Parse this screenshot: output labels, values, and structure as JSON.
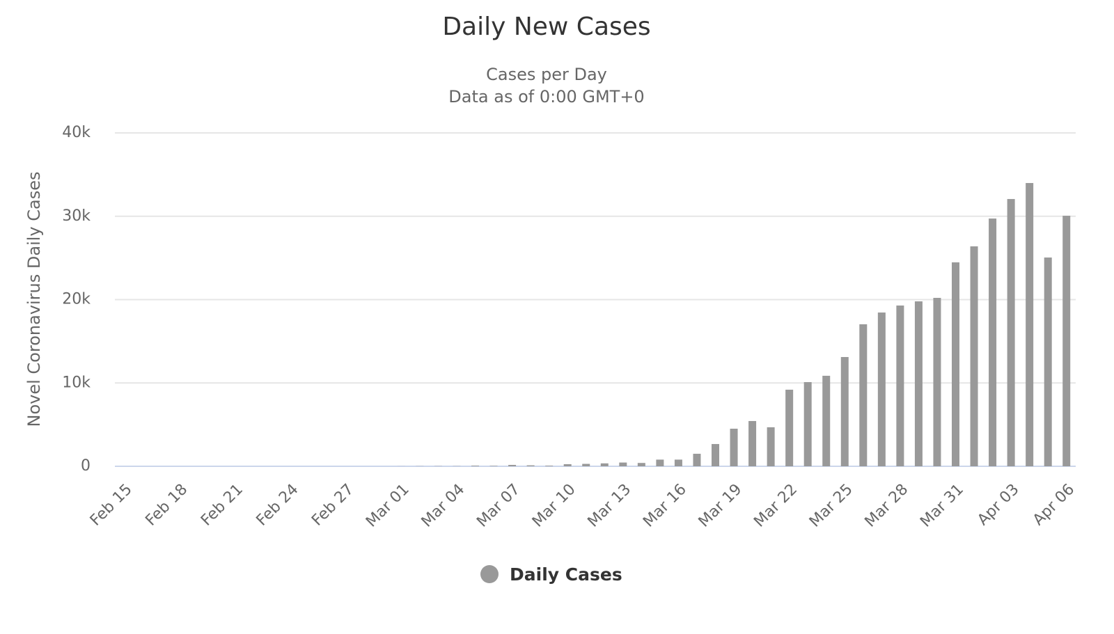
{
  "chart_data": {
    "type": "bar",
    "title": "Daily New Cases",
    "subtitle": [
      "Cases per Day",
      "Data as of 0:00 GMT+0"
    ],
    "y_label": "Novel Coronavirus Daily Cases",
    "categories": [
      "Feb 15",
      null,
      null,
      "Feb 18",
      null,
      null,
      "Feb 21",
      null,
      null,
      "Feb 24",
      null,
      null,
      "Feb 27",
      null,
      null,
      "Mar 01",
      null,
      null,
      "Mar 04",
      null,
      null,
      "Mar 07",
      null,
      null,
      "Mar 10",
      null,
      null,
      "Mar 13",
      null,
      null,
      "Mar 16",
      null,
      null,
      "Mar 19",
      null,
      null,
      "Mar 22",
      null,
      null,
      "Mar 25",
      null,
      null,
      "Mar 28",
      null,
      null,
      "Mar 31",
      null,
      null,
      "Apr 03",
      null,
      null,
      "Apr 06"
    ],
    "series": [
      {
        "name": "Daily Cases",
        "color": "#999999",
        "values": [
          0,
          0,
          0,
          0,
          0,
          0,
          0,
          0,
          0,
          0,
          0,
          0,
          0,
          0,
          0,
          8,
          20,
          24,
          22,
          77,
          53,
          166,
          116,
          75,
          250,
          290,
          350,
          450,
          400,
          800,
          800,
          1500,
          2670,
          4510,
          5430,
          4680,
          9190,
          10100,
          10860,
          13110,
          17040,
          18450,
          19290,
          19790,
          20210,
          24470,
          26390,
          29730,
          32070,
          33990,
          25050,
          30060
        ]
      }
    ],
    "ylim": [
      0,
      40000
    ],
    "yticks": [
      0,
      {
        "value": 10000,
        "label": "10k"
      },
      {
        "value": 20000,
        "label": "20k"
      },
      {
        "value": 30000,
        "label": "30k"
      },
      {
        "value": 40000,
        "label": "40k"
      }
    ],
    "grid": true,
    "legend": "bottom"
  }
}
